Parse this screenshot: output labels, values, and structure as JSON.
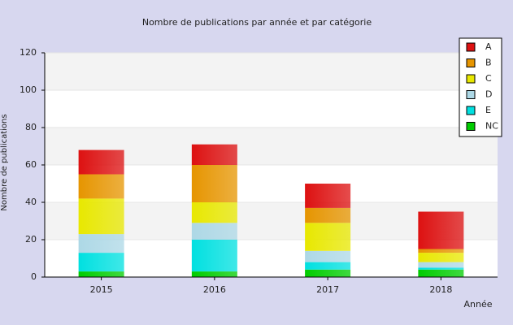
{
  "chart_data": {
    "type": "stacked_bar",
    "title": "Nombre de publications par année et par catégorie",
    "x_label": "Année",
    "y_label": "Nombre de publications",
    "categories": [
      "2015",
      "2016",
      "2017",
      "2018"
    ],
    "series": [
      {
        "name": "NC",
        "color": "#00cc00",
        "values": [
          3,
          3,
          4,
          4
        ]
      },
      {
        "name": "E",
        "color": "#00e0e0",
        "values": [
          10,
          17,
          4,
          1
        ]
      },
      {
        "name": "D",
        "color": "#add8e6",
        "values": [
          10,
          9,
          6,
          3
        ]
      },
      {
        "name": "C",
        "color": "#e8e800",
        "values": [
          19,
          11,
          15,
          5
        ]
      },
      {
        "name": "B",
        "color": "#e69500",
        "values": [
          13,
          20,
          8,
          2
        ]
      },
      {
        "name": "A",
        "color": "#dd1111",
        "values": [
          13,
          11,
          13,
          20
        ]
      }
    ],
    "ylim": [
      0,
      120
    ],
    "yticks": [
      0,
      20,
      40,
      60,
      80,
      100,
      120
    ],
    "grid": true,
    "legend": "top-right"
  }
}
